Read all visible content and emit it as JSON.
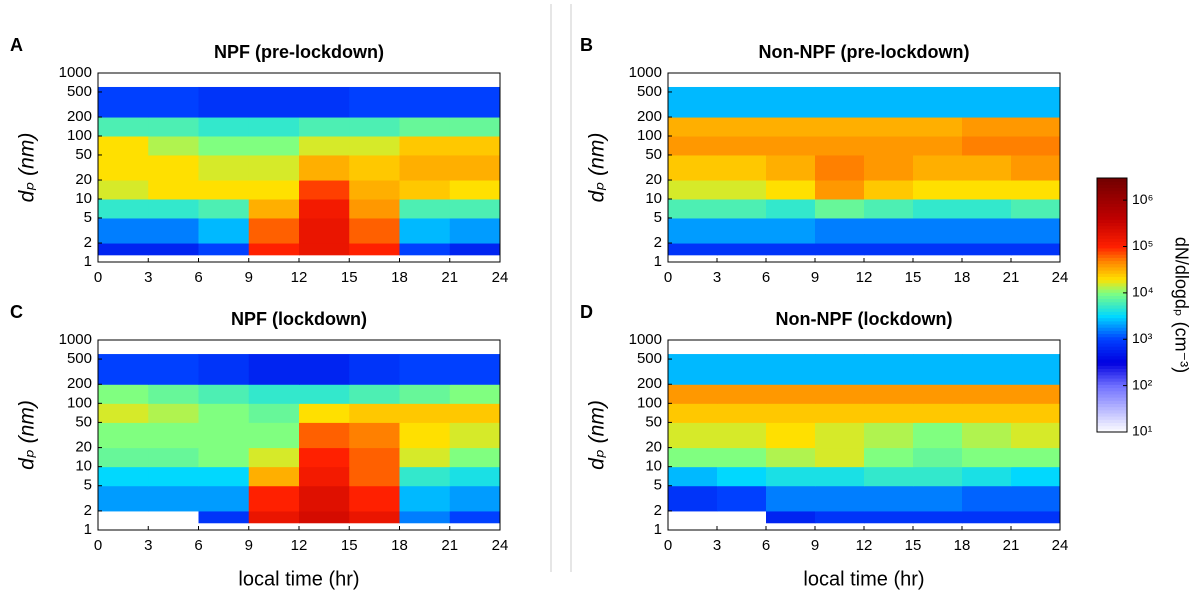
{
  "chart_data": [
    {
      "type": "heatmap",
      "panel_label": "A",
      "title": "NPF (pre-lockdown)",
      "ylabel": "dₚ (nm)",
      "xlim": [
        0,
        24
      ],
      "xticks": [
        0,
        3,
        6,
        9,
        12,
        15,
        18,
        21,
        24
      ],
      "ylim": [
        1,
        1000
      ],
      "yticks": [
        1,
        2,
        5,
        10,
        20,
        50,
        100,
        200,
        500,
        1000
      ],
      "log_y": true,
      "x_bins": [
        0,
        3,
        6,
        9,
        12,
        15,
        18,
        21,
        24
      ],
      "y_bins": [
        1.3,
        2,
        5,
        10,
        20,
        50,
        100,
        200,
        600
      ],
      "values": [
        [
          600,
          600,
          1000,
          100000,
          160000,
          100000,
          1000,
          600
        ],
        [
          1600,
          1600,
          2500,
          63000,
          160000,
          63000,
          2500,
          2000
        ],
        [
          5000,
          5000,
          6300,
          32000,
          130000,
          40000,
          6300,
          6300
        ],
        [
          16000,
          20000,
          20000,
          20000,
          80000,
          32000,
          25000,
          20000
        ],
        [
          20000,
          20000,
          16000,
          16000,
          32000,
          25000,
          32000,
          32000
        ],
        [
          20000,
          13000,
          10000,
          10000,
          16000,
          16000,
          25000,
          25000
        ],
        [
          6300,
          6300,
          5000,
          5000,
          6300,
          6300,
          8000,
          8000
        ],
        [
          1000,
          1000,
          800,
          800,
          800,
          1000,
          1000,
          1000
        ]
      ]
    },
    {
      "type": "heatmap",
      "panel_label": "B",
      "title": "Non-NPF (pre-lockdown)",
      "ylabel": "dₚ (nm)",
      "xlim": [
        0,
        24
      ],
      "xticks": [
        0,
        3,
        6,
        9,
        12,
        15,
        18,
        21,
        24
      ],
      "ylim": [
        1,
        1000
      ],
      "yticks": [
        1,
        2,
        5,
        10,
        20,
        50,
        100,
        200,
        500,
        1000
      ],
      "log_y": true,
      "x_bins": [
        0,
        3,
        6,
        9,
        12,
        15,
        18,
        21,
        24
      ],
      "y_bins": [
        1.3,
        2,
        5,
        10,
        20,
        50,
        100,
        200,
        600
      ],
      "values": [
        [
          800,
          800,
          800,
          800,
          800,
          800,
          800,
          800
        ],
        [
          2000,
          2000,
          2000,
          1600,
          1600,
          1600,
          1600,
          1600
        ],
        [
          6300,
          6300,
          5000,
          8000,
          6300,
          5000,
          5000,
          6300
        ],
        [
          16000,
          16000,
          20000,
          40000,
          25000,
          20000,
          20000,
          20000
        ],
        [
          25000,
          25000,
          32000,
          50000,
          40000,
          32000,
          32000,
          40000
        ],
        [
          40000,
          40000,
          40000,
          40000,
          40000,
          40000,
          50000,
          50000
        ],
        [
          32000,
          32000,
          32000,
          32000,
          32000,
          32000,
          40000,
          40000
        ],
        [
          2500,
          2500,
          2500,
          2500,
          2500,
          2500,
          2500,
          2500
        ]
      ]
    },
    {
      "type": "heatmap",
      "panel_label": "C",
      "title": "NPF (lockdown)",
      "ylabel": "dₚ (nm)",
      "xlabel": "local time (hr)",
      "xlim": [
        0,
        24
      ],
      "xticks": [
        0,
        3,
        6,
        9,
        12,
        15,
        18,
        21,
        24
      ],
      "ylim": [
        1,
        1000
      ],
      "yticks": [
        1,
        2,
        5,
        10,
        20,
        50,
        100,
        200,
        500,
        1000
      ],
      "log_y": true,
      "x_bins": [
        0,
        3,
        6,
        9,
        12,
        15,
        18,
        21,
        24
      ],
      "y_bins": [
        1.3,
        2,
        5,
        10,
        20,
        50,
        100,
        200,
        600
      ],
      "values": [
        [
          null,
          null,
          800,
          160000,
          250000,
          160000,
          1600,
          1000
        ],
        [
          2000,
          2000,
          2000,
          100000,
          200000,
          100000,
          2500,
          2000
        ],
        [
          3200,
          3200,
          3200,
          32000,
          130000,
          63000,
          5000,
          4000
        ],
        [
          8000,
          8000,
          10000,
          16000,
          100000,
          63000,
          16000,
          10000
        ],
        [
          10000,
          10000,
          10000,
          10000,
          63000,
          50000,
          20000,
          16000
        ],
        [
          16000,
          13000,
          10000,
          8000,
          20000,
          25000,
          25000,
          25000
        ],
        [
          10000,
          8000,
          6300,
          5000,
          5000,
          6300,
          8000,
          10000
        ],
        [
          1000,
          1000,
          800,
          600,
          600,
          800,
          1000,
          1000
        ]
      ]
    },
    {
      "type": "heatmap",
      "panel_label": "D",
      "title": "Non-NPF (lockdown)",
      "ylabel": "dₚ (nm)",
      "xlabel": "local time (hr)",
      "xlim": [
        0,
        24
      ],
      "xticks": [
        0,
        3,
        6,
        9,
        12,
        15,
        18,
        21,
        24
      ],
      "ylim": [
        1,
        1000
      ],
      "yticks": [
        1,
        2,
        5,
        10,
        20,
        50,
        100,
        200,
        500,
        1000
      ],
      "log_y": true,
      "x_bins": [
        0,
        3,
        6,
        9,
        12,
        15,
        18,
        21,
        24
      ],
      "y_bins": [
        1.3,
        2,
        5,
        10,
        20,
        50,
        100,
        200,
        600
      ],
      "values": [
        [
          null,
          null,
          600,
          800,
          800,
          800,
          800,
          800
        ],
        [
          800,
          1000,
          1600,
          1600,
          1600,
          1600,
          1300,
          1300
        ],
        [
          2500,
          3200,
          4000,
          4000,
          5000,
          5000,
          4000,
          3200
        ],
        [
          10000,
          10000,
          13000,
          16000,
          10000,
          8000,
          10000,
          10000
        ],
        [
          16000,
          16000,
          20000,
          16000,
          13000,
          10000,
          13000,
          16000
        ],
        [
          25000,
          25000,
          25000,
          25000,
          25000,
          25000,
          25000,
          25000
        ],
        [
          40000,
          40000,
          40000,
          40000,
          40000,
          40000,
          40000,
          40000
        ],
        [
          2500,
          2500,
          2500,
          2500,
          2500,
          2500,
          2500,
          2500
        ]
      ]
    }
  ],
  "colorbar": {
    "label": "dN/dlogdₚ (cm⁻³)",
    "lim": [
      10,
      3000000
    ],
    "ticks": [
      {
        "value": 10,
        "label": "10¹"
      },
      {
        "value": 100,
        "label": "10²"
      },
      {
        "value": 1000,
        "label": "10³"
      },
      {
        "value": 10000,
        "label": "10⁴"
      },
      {
        "value": 100000,
        "label": "10⁵"
      },
      {
        "value": 1000000,
        "label": "10⁶"
      }
    ]
  }
}
